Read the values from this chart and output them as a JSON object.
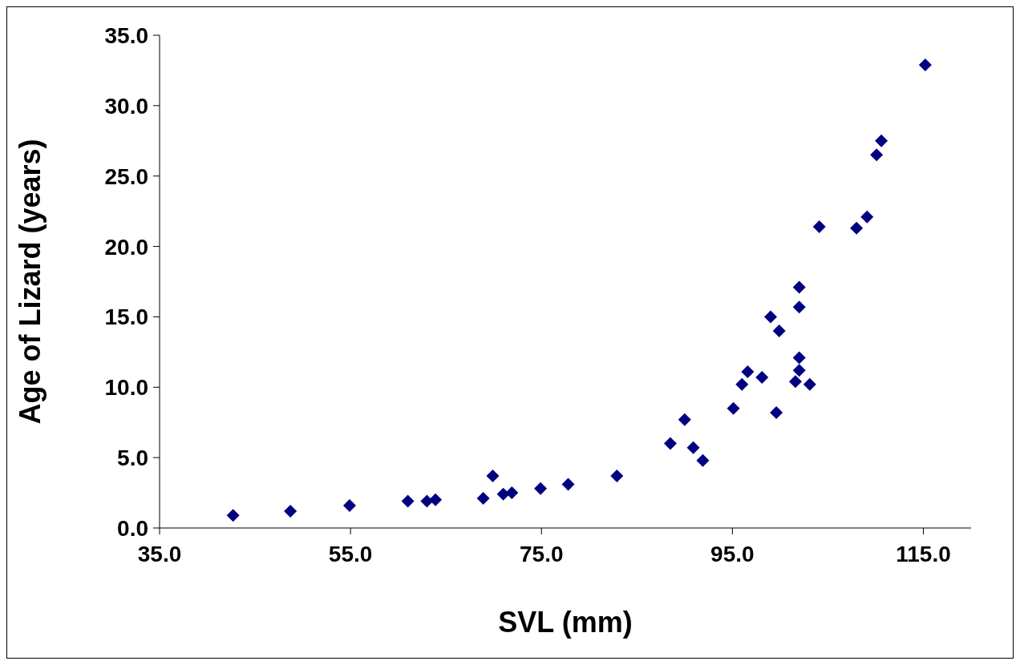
{
  "chart_data": {
    "type": "scatter",
    "xlabel": "SVL (mm)",
    "ylabel": "Age of Lizard (years)",
    "xlim": [
      35,
      120
    ],
    "xticks": [
      {
        "value": 35,
        "label": "35.0"
      },
      {
        "value": 55,
        "label": "55.0"
      },
      {
        "value": 75,
        "label": "75.0"
      },
      {
        "value": 95,
        "label": "95.0"
      },
      {
        "value": 115,
        "label": "115.0"
      }
    ],
    "ylim": [
      0,
      35
    ],
    "yticks": [
      {
        "value": 0,
        "label": "0.0"
      },
      {
        "value": 5,
        "label": "5.0"
      },
      {
        "value": 10,
        "label": "10.0"
      },
      {
        "value": 15,
        "label": "15.0"
      },
      {
        "value": 20,
        "label": "20.0"
      },
      {
        "value": 25,
        "label": "25.0"
      },
      {
        "value": 30,
        "label": "30.0"
      },
      {
        "value": 35,
        "label": "35.0"
      }
    ],
    "grid": false,
    "legend": false,
    "marker": "diamond",
    "series": [
      {
        "color": "#000080",
        "x": [
          42.7,
          48.7,
          54.9,
          61.0,
          63.0,
          63.9,
          68.9,
          69.9,
          71.0,
          71.9,
          74.9,
          77.8,
          82.9,
          88.5,
          90.0,
          90.9,
          91.9,
          95.1,
          96.0,
          96.6,
          98.1,
          99.0,
          99.6,
          99.9,
          101.6,
          102.0,
          102.0,
          102.0,
          102.0,
          103.1,
          104.1,
          108.0,
          109.1,
          110.1,
          110.6,
          115.2
        ],
        "values": [
          0.9,
          1.2,
          1.6,
          1.9,
          1.9,
          2.0,
          2.1,
          3.7,
          2.4,
          2.5,
          2.8,
          3.1,
          3.7,
          6.0,
          7.7,
          5.7,
          4.8,
          8.5,
          10.2,
          11.1,
          10.7,
          15.0,
          8.2,
          14.0,
          10.4,
          11.2,
          12.1,
          15.7,
          17.1,
          10.2,
          21.4,
          21.3,
          22.1,
          26.5,
          27.5,
          32.9
        ]
      }
    ]
  }
}
